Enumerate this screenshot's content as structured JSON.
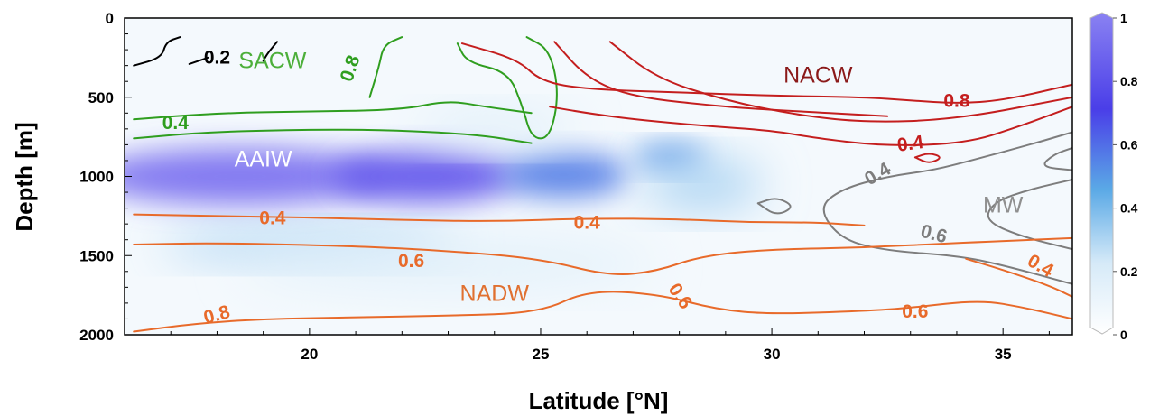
{
  "chart_data": {
    "type": "heatmap",
    "xlabel": "Latitude [°N]",
    "ylabel": "Depth [m]",
    "xlim": [
      16,
      36.5
    ],
    "ylim": [
      2000,
      0
    ],
    "x_ticks": [
      "20",
      "25",
      "30",
      "35"
    ],
    "y_ticks": [
      "0",
      "500",
      "1000",
      "1500",
      "2000"
    ],
    "colorbar": {
      "range": [
        0,
        1
      ],
      "ticks": [
        "0",
        "0.2",
        "0.4",
        "0.6",
        "0.8",
        "1"
      ],
      "colors": [
        "#ffffff",
        "#d6eaf8",
        "#5aa9e6",
        "#4a3ee8",
        "#8a82f2"
      ]
    },
    "water_masses": [
      {
        "name": "SACW",
        "x": 19.2,
        "y": 280,
        "color": "#4caf3a"
      },
      {
        "name": "NACW",
        "x": 31.0,
        "y": 370,
        "color": "#8b1a1a"
      },
      {
        "name": "AAIW",
        "x": 19.0,
        "y": 900,
        "color": "#ffffff"
      },
      {
        "name": "MW",
        "x": 35.0,
        "y": 1190,
        "color": "#8f8f8f"
      },
      {
        "name": "NADW",
        "x": 24.0,
        "y": 1750,
        "color": "#e07030"
      }
    ],
    "heatmap_blobs": [
      {
        "x": 18.5,
        "y": 1000,
        "w": 6.5,
        "h": 360,
        "value": 0.95
      },
      {
        "x": 22.5,
        "y": 1000,
        "w": 4.0,
        "h": 330,
        "value": 0.85
      },
      {
        "x": 25.5,
        "y": 990,
        "w": 2.8,
        "h": 280,
        "value": 0.6
      },
      {
        "x": 27.8,
        "y": 880,
        "w": 1.6,
        "h": 160,
        "value": 0.55
      },
      {
        "x": 28.5,
        "y": 1050,
        "w": 2.6,
        "h": 300,
        "value": 0.35
      },
      {
        "x": 20.0,
        "y": 1430,
        "w": 6.5,
        "h": 200,
        "value": 0.35
      },
      {
        "x": 23.0,
        "y": 1550,
        "w": 9.0,
        "h": 300,
        "value": 0.18
      },
      {
        "x": 24.0,
        "y": 700,
        "w": 3.5,
        "h": 220,
        "value": 0.2
      }
    ],
    "contours": [
      {
        "group": "SACW",
        "color": "#2f9e1f",
        "points": [
          [
            16.2,
            760
          ],
          [
            18,
            715
          ],
          [
            21,
            700
          ],
          [
            23.5,
            730
          ],
          [
            24.8,
            790
          ]
        ]
      },
      {
        "group": "SACW",
        "color": "#2f9e1f",
        "points": [
          [
            16.2,
            640
          ],
          [
            18,
            600
          ],
          [
            20,
            590
          ],
          [
            22,
            580
          ],
          [
            23,
            520
          ],
          [
            23.8,
            560
          ],
          [
            24.8,
            600
          ]
        ]
      },
      {
        "group": "SACW",
        "color": "#2f9e1f",
        "points": [
          [
            23.2,
            160
          ],
          [
            23.4,
            280
          ],
          [
            24.3,
            340
          ],
          [
            24.6,
            550
          ],
          [
            24.8,
            760
          ],
          [
            25.2,
            760
          ],
          [
            25.4,
            480
          ],
          [
            25.2,
            200
          ],
          [
            24.7,
            120
          ]
        ]
      },
      {
        "group": "SACW",
        "color": "#2f9e1f",
        "points": [
          [
            21.3,
            500
          ],
          [
            21.5,
            310
          ],
          [
            21.6,
            170
          ],
          [
            22,
            120
          ]
        ]
      },
      {
        "group": "SAIW",
        "color": "#000000",
        "points": [
          [
            16.2,
            300
          ],
          [
            16.8,
            250
          ],
          [
            16.9,
            150
          ],
          [
            17.2,
            120
          ]
        ]
      },
      {
        "group": "SAIW",
        "color": "#000000",
        "points": [
          [
            17.4,
            290
          ],
          [
            17.8,
            250
          ]
        ]
      },
      {
        "group": "SAIW",
        "color": "#000000",
        "points": [
          [
            19.0,
            270
          ],
          [
            19.1,
            220
          ],
          [
            19.3,
            150
          ]
        ]
      },
      {
        "group": "NACW",
        "color": "#c41e1e",
        "points": [
          [
            23.3,
            160
          ],
          [
            24.5,
            260
          ],
          [
            25,
            400
          ],
          [
            26,
            450
          ],
          [
            28,
            470
          ],
          [
            30,
            490
          ],
          [
            32,
            500
          ],
          [
            33,
            520
          ],
          [
            34,
            540
          ],
          [
            35,
            520
          ],
          [
            36.5,
            420
          ]
        ]
      },
      {
        "group": "NACW",
        "color": "#c41e1e",
        "points": [
          [
            25.3,
            150
          ],
          [
            26,
            380
          ],
          [
            27,
            500
          ],
          [
            29,
            560
          ],
          [
            30,
            580
          ],
          [
            32.5,
            620
          ]
        ]
      },
      {
        "group": "NACW",
        "color": "#c41e1e",
        "points": [
          [
            26.5,
            150
          ],
          [
            27.5,
            380
          ],
          [
            29,
            520
          ],
          [
            30.5,
            610
          ],
          [
            32,
            660
          ],
          [
            34,
            640
          ],
          [
            36.5,
            500
          ]
        ]
      },
      {
        "group": "NACW",
        "color": "#c41e1e",
        "points": [
          [
            25.2,
            560
          ],
          [
            26,
            600
          ],
          [
            27,
            640
          ],
          [
            28.5,
            680
          ],
          [
            30,
            710
          ],
          [
            31,
            760
          ],
          [
            32.5,
            810
          ],
          [
            34.2,
            790
          ],
          [
            35.3,
            690
          ],
          [
            36.5,
            560
          ]
        ]
      },
      {
        "group": "NACW",
        "color": "#c41e1e",
        "points": [
          [
            33.1,
            880
          ],
          [
            33.4,
            850
          ],
          [
            33.7,
            880
          ],
          [
            33.4,
            920
          ],
          [
            33.1,
            880
          ]
        ]
      },
      {
        "group": "MW",
        "color": "#7d7d7d",
        "points": [
          [
            36.5,
            720
          ],
          [
            35.7,
            790
          ],
          [
            34.3,
            900
          ],
          [
            33.5,
            960
          ],
          [
            32.5,
            1000
          ],
          [
            31.5,
            1080
          ],
          [
            31.0,
            1200
          ],
          [
            31.5,
            1400
          ],
          [
            32.5,
            1470
          ],
          [
            34,
            1500
          ],
          [
            35,
            1560
          ],
          [
            36.5,
            1680
          ]
        ]
      },
      {
        "group": "MW",
        "color": "#7d7d7d",
        "points": [
          [
            36.5,
            1460
          ],
          [
            35.4,
            1380
          ],
          [
            34.6,
            1280
          ],
          [
            34.8,
            1160
          ],
          [
            35.6,
            1080
          ],
          [
            36.5,
            1020
          ]
        ]
      },
      {
        "group": "MW",
        "color": "#7d7d7d",
        "points": [
          [
            29.7,
            1170
          ],
          [
            30.1,
            1130
          ],
          [
            30.5,
            1190
          ],
          [
            30.1,
            1250
          ],
          [
            29.7,
            1170
          ]
        ]
      },
      {
        "group": "MW",
        "color": "#7d7d7d",
        "points": [
          [
            36.5,
            820
          ],
          [
            36.1,
            860
          ],
          [
            35.8,
            940
          ],
          [
            36.5,
            960
          ]
        ]
      },
      {
        "group": "NADW",
        "color": "#e86a2a",
        "points": [
          [
            16.2,
            1240
          ],
          [
            18,
            1250
          ],
          [
            20,
            1260
          ],
          [
            22,
            1275
          ],
          [
            24,
            1285
          ],
          [
            26,
            1265
          ],
          [
            28,
            1270
          ],
          [
            29.5,
            1290
          ],
          [
            31,
            1290
          ],
          [
            32,
            1310
          ]
        ]
      },
      {
        "group": "NADW",
        "color": "#e86a2a",
        "points": [
          [
            16.2,
            1430
          ],
          [
            18,
            1420
          ],
          [
            21,
            1440
          ],
          [
            23,
            1470
          ],
          [
            25,
            1520
          ],
          [
            26.5,
            1630
          ],
          [
            27.5,
            1600
          ],
          [
            28.5,
            1500
          ],
          [
            30,
            1460
          ],
          [
            32,
            1450
          ],
          [
            34,
            1420
          ],
          [
            36.5,
            1390
          ]
        ]
      },
      {
        "group": "NADW",
        "color": "#e86a2a",
        "points": [
          [
            16.2,
            1980
          ],
          [
            17.5,
            1930
          ],
          [
            19,
            1900
          ],
          [
            21,
            1890
          ],
          [
            23,
            1880
          ],
          [
            25,
            1860
          ],
          [
            26,
            1720
          ],
          [
            27.5,
            1740
          ],
          [
            28.8,
            1840
          ],
          [
            30,
            1870
          ],
          [
            32,
            1850
          ],
          [
            33,
            1830
          ],
          [
            34.5,
            1780
          ],
          [
            35.5,
            1830
          ],
          [
            36.5,
            1900
          ]
        ]
      },
      {
        "group": "NADW",
        "color": "#e86a2a",
        "points": [
          [
            34.2,
            1520
          ],
          [
            35,
            1590
          ],
          [
            36,
            1690
          ],
          [
            36.5,
            1760
          ]
        ]
      }
    ],
    "contour_labels": [
      {
        "text": "0.2",
        "x": 18.0,
        "y": 255,
        "color": "#000000",
        "rotate": 0
      },
      {
        "text": "0.8",
        "x": 20.9,
        "y": 320,
        "color": "#2f9e1f",
        "rotate": -72
      },
      {
        "text": "0.4",
        "x": 17.1,
        "y": 670,
        "color": "#2f9e1f",
        "rotate": 0
      },
      {
        "text": "0.8",
        "x": 34.0,
        "y": 530,
        "color": "#c41e1e",
        "rotate": 0
      },
      {
        "text": "0.4",
        "x": 33.0,
        "y": 800,
        "color": "#c41e1e",
        "rotate": -8
      },
      {
        "text": "0.4",
        "x": 32.3,
        "y": 990,
        "color": "#7d7d7d",
        "rotate": -30
      },
      {
        "text": "0.6",
        "x": 33.5,
        "y": 1370,
        "color": "#7d7d7d",
        "rotate": 15
      },
      {
        "text": "0.4",
        "x": 19.2,
        "y": 1270,
        "color": "#e86a2a",
        "rotate": 0
      },
      {
        "text": "0.4",
        "x": 26.0,
        "y": 1300,
        "color": "#e86a2a",
        "rotate": 0
      },
      {
        "text": "0.6",
        "x": 22.2,
        "y": 1540,
        "color": "#e86a2a",
        "rotate": 0
      },
      {
        "text": "0.6",
        "x": 28.0,
        "y": 1760,
        "color": "#e86a2a",
        "rotate": 55
      },
      {
        "text": "0.4",
        "x": 35.8,
        "y": 1570,
        "color": "#e86a2a",
        "rotate": 30
      },
      {
        "text": "0.6",
        "x": 33.1,
        "y": 1860,
        "color": "#e86a2a",
        "rotate": 0
      },
      {
        "text": "0.8",
        "x": 18.0,
        "y": 1880,
        "color": "#e86a2a",
        "rotate": -15
      }
    ]
  }
}
